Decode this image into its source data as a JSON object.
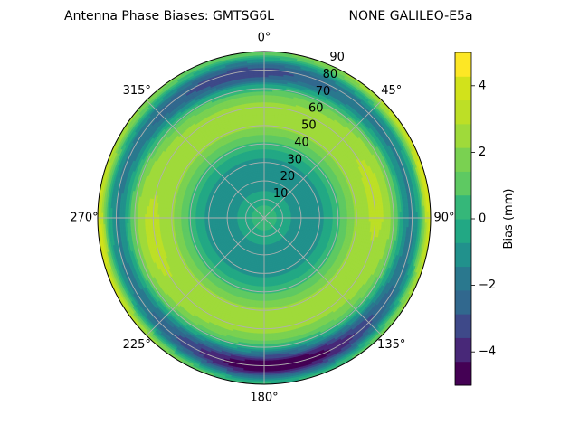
{
  "chart_data": {
    "type": "polar-contour",
    "title_left": "Antenna Phase Biases: GMTSG6L",
    "title_right": "NONE GALILEO-E5a",
    "azimuth_ticks": [
      {
        "deg": 0,
        "label": "0°"
      },
      {
        "deg": 45,
        "label": "45°"
      },
      {
        "deg": 90,
        "label": "90°"
      },
      {
        "deg": 135,
        "label": "135°"
      },
      {
        "deg": 180,
        "label": "180°"
      },
      {
        "deg": 225,
        "label": "225°"
      },
      {
        "deg": 270,
        "label": "270°"
      },
      {
        "deg": 315,
        "label": "315°"
      }
    ],
    "radial_ticks": [
      10,
      20,
      30,
      40,
      50,
      60,
      70,
      80,
      90
    ],
    "radial_range": [
      0,
      90
    ],
    "grid": true,
    "colorbar": {
      "label": "Bias (mm)",
      "range": [
        -5,
        5
      ],
      "ticks": [
        {
          "value": 4,
          "label": "4"
        },
        {
          "value": 2,
          "label": "2"
        },
        {
          "value": 0,
          "label": "0"
        },
        {
          "value": -2,
          "label": "−2"
        },
        {
          "value": -4,
          "label": "−4"
        }
      ],
      "levels": [
        -5,
        -4.2857,
        -3.5714,
        -2.8571,
        -2.1429,
        -1.4286,
        -0.7143,
        0,
        0.7143,
        1.4286,
        2.1429,
        2.8571,
        3.5714,
        4.2857,
        5
      ],
      "colors": [
        "#440154",
        "#482878",
        "#3e4989",
        "#31688e",
        "#2a788e",
        "#21918c",
        "#22a884",
        "#35b779",
        "#5ec962",
        "#7ad151",
        "#9fda3a",
        "#bddf26",
        "#d2e21b",
        "#fde725"
      ]
    },
    "bias_model": {
      "description_units": "mm",
      "zenith_value": 0.5,
      "ring_peak_value": 2.6,
      "ring_peak_zenith_deg": 55,
      "lobe_peak_value": 3.8,
      "lobe_azimuths_deg": [
        80,
        260
      ],
      "rim_value": 4.2,
      "trough_value": -3.6,
      "trough_azimuth_deg": 175,
      "trough_zenith_deg": 82
    }
  }
}
